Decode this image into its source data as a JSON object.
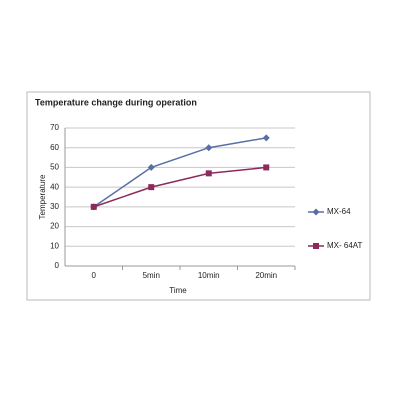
{
  "chart_data": {
    "type": "line",
    "title": "Temperature change during operation",
    "x_label": "Time",
    "y_label": "Temperature",
    "categories": [
      "0",
      "5min",
      "10min",
      "20min"
    ],
    "series": [
      {
        "name": "MX-64",
        "color": "#5a6ea6",
        "marker": "diamond",
        "values": [
          30,
          50,
          60,
          65
        ]
      },
      {
        "name": "MX- 64AT",
        "color": "#8c2a5c",
        "marker": "square",
        "values": [
          30,
          40,
          47,
          50
        ]
      }
    ],
    "ylim": [
      0,
      70
    ],
    "yticks": [
      0,
      10,
      20,
      30,
      40,
      50,
      60,
      70
    ],
    "grid": true,
    "legend": "right"
  }
}
